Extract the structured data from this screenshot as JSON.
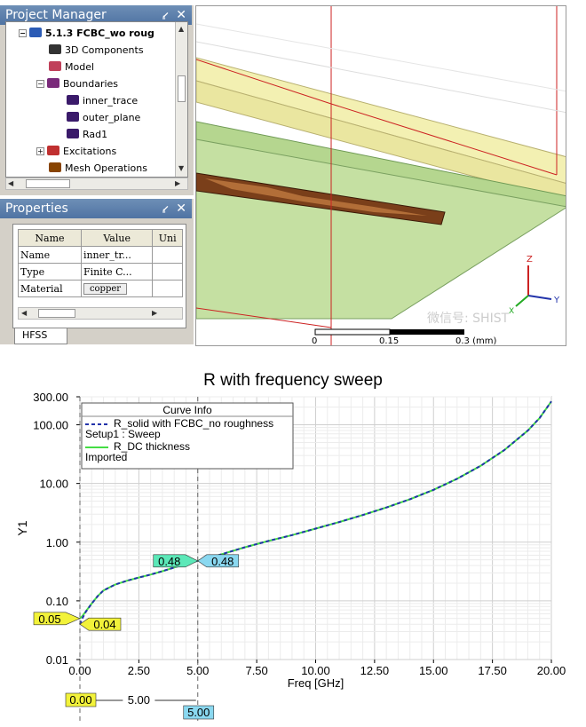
{
  "project_manager": {
    "title": "Project Manager",
    "pin_glyph": "⭹",
    "close_glyph": "✕",
    "tree": [
      {
        "label": "5.1.3 FCBC_wo roug",
        "icon": "project-icon",
        "bold": true,
        "expander": "−"
      },
      {
        "label": "3D Components",
        "icon": "components-icon"
      },
      {
        "label": "Model",
        "icon": "model-icon"
      },
      {
        "label": "Boundaries",
        "icon": "boundaries-icon",
        "expander": "−"
      },
      {
        "label": "inner_trace",
        "icon": "boundary-icon",
        "selected": true
      },
      {
        "label": "outer_plane",
        "icon": "boundary-icon"
      },
      {
        "label": "Rad1",
        "icon": "boundary-icon"
      },
      {
        "label": "Excitations",
        "icon": "excitations-icon",
        "expander": "+"
      },
      {
        "label": "Mesh Operations",
        "icon": "mesh-icon"
      }
    ]
  },
  "properties": {
    "title": "Properties",
    "headers": [
      "Name",
      "Value",
      "Uni"
    ],
    "rows": [
      {
        "name": "Name",
        "value": "inner_tr..."
      },
      {
        "name": "Type",
        "value": "Finite C..."
      },
      {
        "name": "Material",
        "value": "copper"
      }
    ],
    "tab": "HFSS"
  },
  "viewport": {
    "axes": {
      "z": "Z",
      "y": "Y",
      "x": "X"
    },
    "scale": {
      "ticks": [
        "0",
        "0.15",
        "0.3 (mm)"
      ]
    },
    "watermark": "微信号: SHIST",
    "colors": {
      "trace": "#7a3f1a",
      "plane": "#b5d68f",
      "substrate": "#f3f0b2",
      "box": "#cc2222"
    }
  },
  "chart_data": {
    "type": "line",
    "title": "R with frequency sweep",
    "xlabel": "Freq [GHz]",
    "ylabel": "Y1",
    "xlim": [
      0,
      20
    ],
    "ylim": [
      0.01,
      300
    ],
    "yscale": "log",
    "xticks": [
      "0.00",
      "2.50",
      "5.00",
      "7.50",
      "10.00",
      "12.50",
      "15.00",
      "17.50",
      "20.00"
    ],
    "yticks": [
      {
        "v": 300,
        "label": "300.00"
      },
      {
        "v": 100,
        "label": "100.00"
      },
      {
        "v": 10,
        "label": "10.00"
      },
      {
        "v": 1,
        "label": "1.00"
      },
      {
        "v": 0.1,
        "label": "0.10"
      },
      {
        "v": 0.01,
        "label": "0.01"
      }
    ],
    "legend": {
      "title": "Curve Info",
      "placement": "top-left",
      "entries": [
        {
          "name": "R_solid with FCBC_no roughness",
          "sub": "Setup1 : Sweep",
          "color": "#2233aa",
          "dash": true
        },
        {
          "name": "R_DC thickness",
          "sub": "Imported",
          "color": "#44dd44",
          "dash": false
        }
      ]
    },
    "series": [
      {
        "name": "R_solid with FCBC_no roughness",
        "color": "#2233aa",
        "x": [
          0,
          0.1,
          0.25,
          0.5,
          0.75,
          1,
          1.5,
          2,
          2.5,
          3,
          3.5,
          4,
          4.5,
          5,
          6,
          7,
          8,
          9,
          10,
          11,
          12,
          13,
          14,
          15,
          16,
          17,
          18,
          19,
          19.5,
          20
        ],
        "y": [
          0.04,
          0.05,
          0.065,
          0.09,
          0.12,
          0.15,
          0.19,
          0.22,
          0.25,
          0.28,
          0.32,
          0.37,
          0.43,
          0.48,
          0.62,
          0.82,
          1.05,
          1.32,
          1.7,
          2.2,
          2.9,
          3.9,
          5.4,
          7.8,
          12,
          20,
          37,
          80,
          130,
          250
        ]
      },
      {
        "name": "R_DC thickness",
        "color": "#44dd44",
        "x": [
          0,
          0.1,
          0.25,
          0.5,
          0.75,
          1,
          1.5,
          2,
          2.5,
          3,
          3.5,
          4,
          4.5,
          5,
          6,
          7,
          8,
          9,
          10,
          11,
          12,
          13,
          14,
          15,
          16,
          17,
          18,
          19,
          19.5,
          20
        ],
        "y": [
          0.05,
          0.055,
          0.066,
          0.09,
          0.12,
          0.15,
          0.19,
          0.22,
          0.25,
          0.28,
          0.32,
          0.37,
          0.43,
          0.48,
          0.62,
          0.82,
          1.05,
          1.32,
          1.7,
          2.2,
          2.9,
          3.9,
          5.4,
          7.8,
          12,
          20,
          37,
          80,
          130,
          250
        ]
      }
    ],
    "markers": [
      {
        "x": 0,
        "y": 0.05,
        "label": "0.05",
        "color": "#f2f23a",
        "side": "left"
      },
      {
        "x": 0,
        "y": 0.04,
        "label": "0.04",
        "color": "#f2f23a",
        "side": "right"
      },
      {
        "x": 5,
        "y": 0.48,
        "label": "0.48",
        "color": "#5ce8b8",
        "side": "left"
      },
      {
        "x": 5,
        "y": 0.48,
        "label": "0.48",
        "color": "#8ad8f0",
        "side": "right"
      }
    ],
    "x_markers": [
      {
        "x": 0,
        "label": "0.00",
        "color": "#f2f23a"
      },
      {
        "x": 5,
        "label": "5.00",
        "color": "#8ad8f0"
      }
    ],
    "delta_label": "5.00"
  }
}
